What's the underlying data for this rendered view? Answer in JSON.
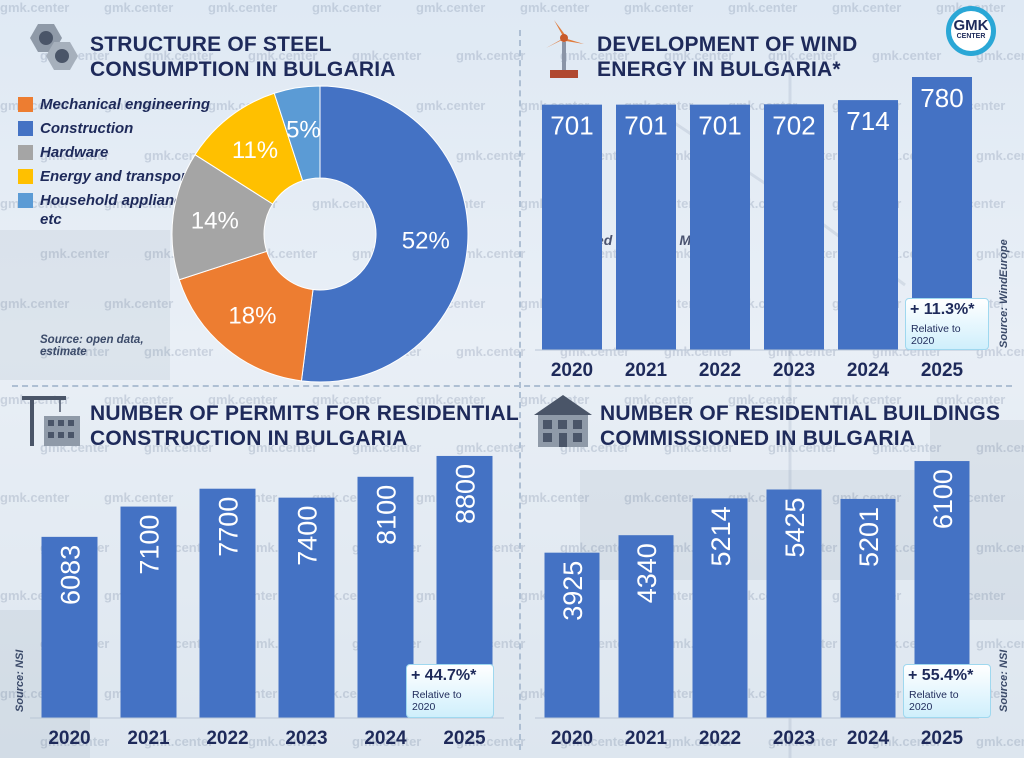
{
  "brand": {
    "logo_top": "GMK",
    "logo_bottom": "CENTER",
    "watermark": "gmk.center"
  },
  "colors": {
    "bar": "#4472c4",
    "title": "#1e2a5a",
    "badge_border": "#9fd8ef"
  },
  "panels": {
    "steel": {
      "title_line1": "STRUCTURE OF STEEL",
      "title_line2": "CONSUMPTION IN BULGARIA",
      "source": "Source: open data, estimate",
      "icon": "steel-nuts-icon"
    },
    "wind": {
      "title_line1": "DEVELOPMENT OF WIND",
      "title_line2": "ENERGY IN BULGARIA*",
      "note": "*Installed capacity, MW",
      "source": "Source: WindEurope",
      "badge_pct": "+ 11.3%*",
      "badge_rel": "Relative to 2020",
      "icon": "wind-turbine-icon"
    },
    "permits": {
      "title_line1": "NUMBER OF PERMITS FOR RESIDENTIAL",
      "title_line2": "CONSTRUCTION IN BULGARIA",
      "source": "Source: NSI",
      "badge_pct": "+ 44.7%*",
      "badge_rel": "Relative to 2020",
      "icon": "construction-crane-icon"
    },
    "buildings": {
      "title_line1": "NUMBER OF RESIDENTIAL BUILDINGS",
      "title_line2": "COMMISSIONED IN BULGARIA",
      "source": "Source: NSI",
      "badge_pct": "+ 55.4%*",
      "badge_rel": "Relative to 2020",
      "icon": "house-icon"
    }
  },
  "chart_data": [
    {
      "type": "pie",
      "title": "STRUCTURE OF STEEL CONSUMPTION IN BULGARIA",
      "legend_position": "left",
      "slices": [
        {
          "label": "Construction",
          "value": 52,
          "display": "52%",
          "color": "#4472c4"
        },
        {
          "label": "Mechanical engineering",
          "value": 18,
          "display": "18%",
          "color": "#ed7d31"
        },
        {
          "label": "Hardware",
          "value": 14,
          "display": "14%",
          "color": "#a5a5a5"
        },
        {
          "label": "Energy and transport",
          "value": 11,
          "display": "11%",
          "color": "#ffc000"
        },
        {
          "label": "Household appliances, etc",
          "value": 5,
          "display": "5%",
          "color": "#5b9bd5"
        }
      ],
      "legend_order": [
        "Mechanical engineering",
        "Construction",
        "Hardware",
        "Energy and transport",
        "Household appliances, etc"
      ]
    },
    {
      "type": "bar",
      "title": "DEVELOPMENT OF WIND ENERGY IN BULGARIA*",
      "categories": [
        "2020",
        "2021",
        "2022",
        "2023",
        "2024",
        "2025"
      ],
      "values": [
        701,
        701,
        701,
        702,
        714,
        780
      ],
      "ylim": [
        0,
        800
      ]
    },
    {
      "type": "bar",
      "title": "NUMBER OF PERMITS FOR RESIDENTIAL CONSTRUCTION IN BULGARIA",
      "categories": [
        "2020",
        "2021",
        "2022",
        "2023",
        "2024",
        "2025"
      ],
      "values": [
        6083,
        7100,
        7700,
        7400,
        8100,
        8800
      ],
      "ylim": [
        0,
        9000
      ]
    },
    {
      "type": "bar",
      "title": "NUMBER OF RESIDENTIAL BUILDINGS COMMISSIONED IN BULGARIA",
      "categories": [
        "2020",
        "2021",
        "2022",
        "2023",
        "2024",
        "2025"
      ],
      "values": [
        3925,
        4340,
        5214,
        5425,
        5201,
        6100
      ],
      "ylim": [
        0,
        6600
      ]
    }
  ]
}
